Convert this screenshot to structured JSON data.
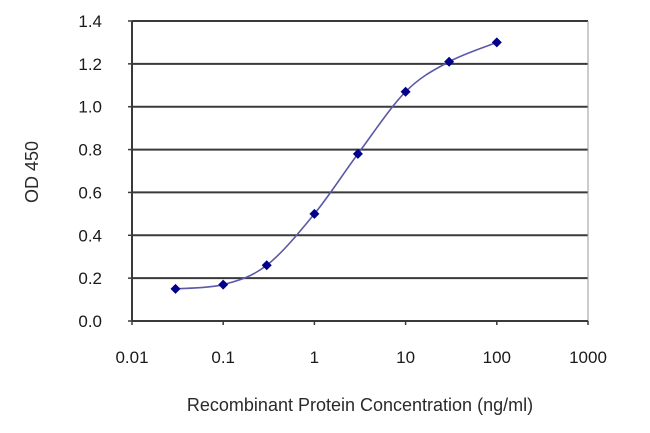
{
  "chart_data": {
    "type": "line",
    "title": "",
    "xlabel": "Recombinant Protein Concentration (ng/ml)",
    "ylabel": "OD 450",
    "x_scale": "log",
    "xlim": [
      0.01,
      1000
    ],
    "ylim": [
      0.0,
      1.4
    ],
    "x_ticks": [
      0.01,
      0.1,
      1,
      10,
      100,
      1000
    ],
    "x_tick_labels": [
      "0.01",
      "0.1",
      "1",
      "10",
      "100",
      "1000"
    ],
    "y_ticks": [
      0.0,
      0.2,
      0.4,
      0.6,
      0.8,
      1.0,
      1.2,
      1.4
    ],
    "y_tick_labels": [
      "0.0",
      "0.2",
      "0.4",
      "0.6",
      "0.8",
      "1.0",
      "1.2",
      "1.4"
    ],
    "grid": "horizontal",
    "legend": null,
    "series": [
      {
        "name": "OD 450",
        "color": "#00008b",
        "line_color": "#5a5aa8",
        "marker": "diamond",
        "x": [
          0.03,
          0.1,
          0.3,
          1,
          3,
          10,
          30,
          100
        ],
        "values": [
          0.15,
          0.17,
          0.26,
          0.5,
          0.78,
          1.07,
          1.21,
          1.3
        ]
      }
    ]
  }
}
